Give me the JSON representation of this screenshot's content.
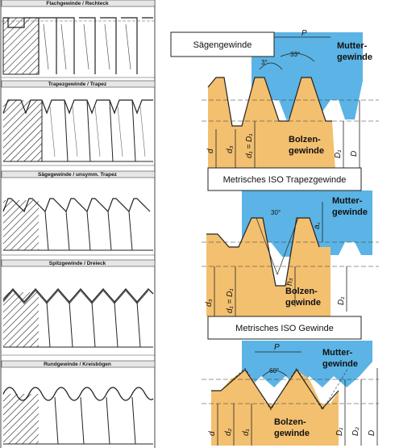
{
  "left_panel": {
    "captions": [
      "Flachgewinde / Rechteck",
      "Trapezgewinde / Trapez",
      "Sägegewinde / unsymm. Trapez",
      "Spitzgewinde / Dreieck",
      "Rundgewinde / Kreisbögen"
    ]
  },
  "sections": {
    "saegen": {
      "title": "Sägengewinde",
      "mutter": "Mutter-\ngewinde",
      "bolzen": "Bolzen-\ngewinde",
      "pitch": "P",
      "angle_small": "3°",
      "angle_large": "33°",
      "d": "d",
      "d3": "d₃",
      "d1d1": "d₁ = D₁",
      "D1": "D₁",
      "D": "D"
    },
    "trapez": {
      "title": "Metrisches ISO Trapezgewinde",
      "mutter": "Mutter-\ngewinde",
      "bolzen": "Bolzen-\ngewinde",
      "angle": "30°",
      "d": "d₃",
      "d1d1": "d₁ = D₁",
      "h3": "h₃",
      "D1": "D₁",
      "a": "a꜀"
    },
    "iso": {
      "title": "Metrisches ISO Gewinde",
      "mutter": "Mutter-\ngewinde",
      "bolzen": "Bolzen-\ngewinde",
      "pitch": "P",
      "angle": "60°",
      "d": "d",
      "d2": "d₂",
      "d1": "d₁",
      "D1": "D₁",
      "D2": "D₂",
      "D": "D"
    }
  },
  "colors": {
    "bolt": "#f3c070",
    "nut": "#5bb4e5",
    "hatch": "#222222"
  }
}
